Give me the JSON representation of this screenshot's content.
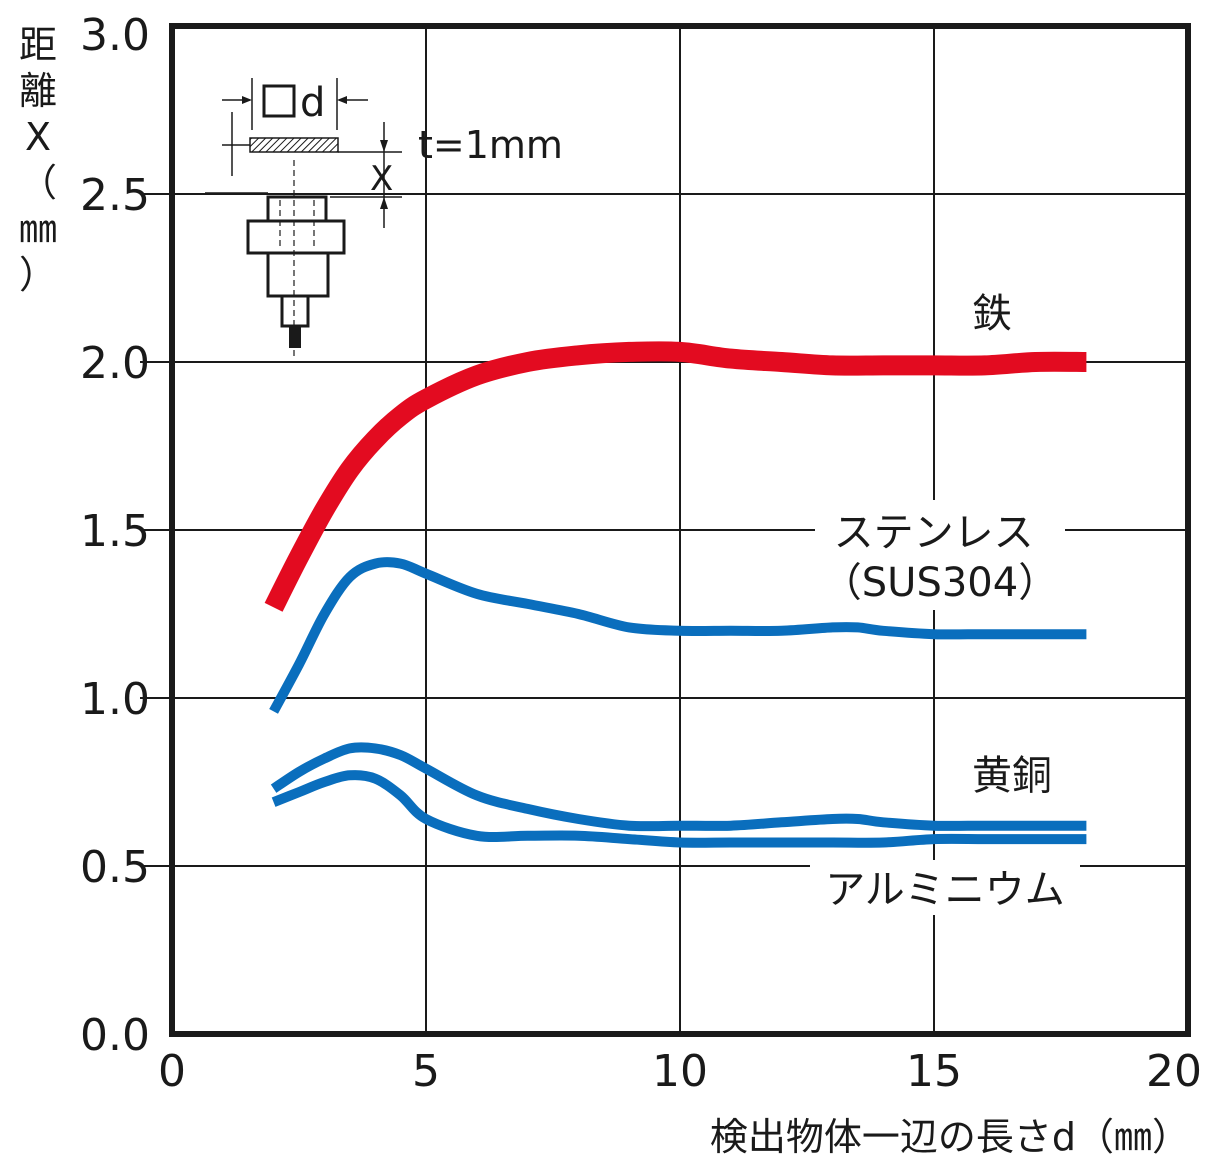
{
  "chart_data": {
    "type": "line",
    "xlabel": "検出物体一辺の長さd（㎜）",
    "ylabel": "距離X（㎜）",
    "xlim": [
      0,
      20
    ],
    "ylim": [
      0,
      3.0
    ],
    "x_ticks": [
      0,
      5,
      10,
      15,
      20
    ],
    "x_tick_labels": [
      "0",
      "5",
      "10",
      "15",
      "20"
    ],
    "y_ticks": [
      0,
      0.5,
      1.0,
      1.5,
      2.0,
      2.5,
      3.0
    ],
    "y_tick_labels": [
      "0.0",
      "0.5",
      "1.0",
      "1.5",
      "2.0",
      "2.5",
      "3.0"
    ],
    "grid": true,
    "series": [
      {
        "name": "鉄",
        "color": "#e30b20",
        "x": [
          2,
          2.5,
          3,
          3.5,
          4,
          4.5,
          5,
          6,
          7,
          8,
          9,
          10,
          11,
          12,
          13,
          14,
          15,
          16,
          17,
          18
        ],
        "y": [
          1.27,
          1.42,
          1.56,
          1.68,
          1.77,
          1.84,
          1.89,
          1.96,
          2.0,
          2.02,
          2.03,
          2.03,
          2.01,
          2.0,
          1.99,
          1.99,
          1.99,
          1.99,
          2.0,
          2.0
        ]
      },
      {
        "name": "ステンレス（SUS304）",
        "color": "#0a6ebd",
        "x": [
          2,
          2.5,
          3,
          3.5,
          4,
          4.5,
          5,
          6,
          7,
          8,
          9,
          10,
          11,
          12,
          13,
          13.5,
          14,
          15,
          16,
          17,
          18
        ],
        "y": [
          0.96,
          1.1,
          1.25,
          1.36,
          1.4,
          1.4,
          1.37,
          1.31,
          1.28,
          1.25,
          1.21,
          1.2,
          1.2,
          1.2,
          1.21,
          1.21,
          1.2,
          1.19,
          1.19,
          1.19,
          1.19
        ]
      },
      {
        "name": "黄銅",
        "color": "#0a6ebd",
        "x": [
          2,
          2.5,
          3,
          3.5,
          4,
          4.5,
          5,
          6,
          7,
          8,
          9,
          10,
          11,
          12,
          13,
          13.5,
          14,
          15,
          16,
          17,
          18
        ],
        "y": [
          0.73,
          0.78,
          0.82,
          0.85,
          0.85,
          0.83,
          0.79,
          0.71,
          0.67,
          0.64,
          0.62,
          0.62,
          0.62,
          0.63,
          0.64,
          0.64,
          0.63,
          0.62,
          0.62,
          0.62,
          0.62
        ]
      },
      {
        "name": "アルミニウム",
        "color": "#0a6ebd",
        "x": [
          2,
          2.5,
          3,
          3.5,
          4,
          4.5,
          5,
          6,
          7,
          8,
          9,
          10,
          11,
          12,
          13,
          14,
          15,
          16,
          17,
          18
        ],
        "y": [
          0.69,
          0.72,
          0.75,
          0.77,
          0.76,
          0.71,
          0.64,
          0.59,
          0.59,
          0.59,
          0.58,
          0.57,
          0.57,
          0.57,
          0.57,
          0.57,
          0.58,
          0.58,
          0.58,
          0.58
        ]
      }
    ]
  },
  "inset": {
    "d_label": "d",
    "t_label": "t=1mm",
    "x_label": "X"
  }
}
